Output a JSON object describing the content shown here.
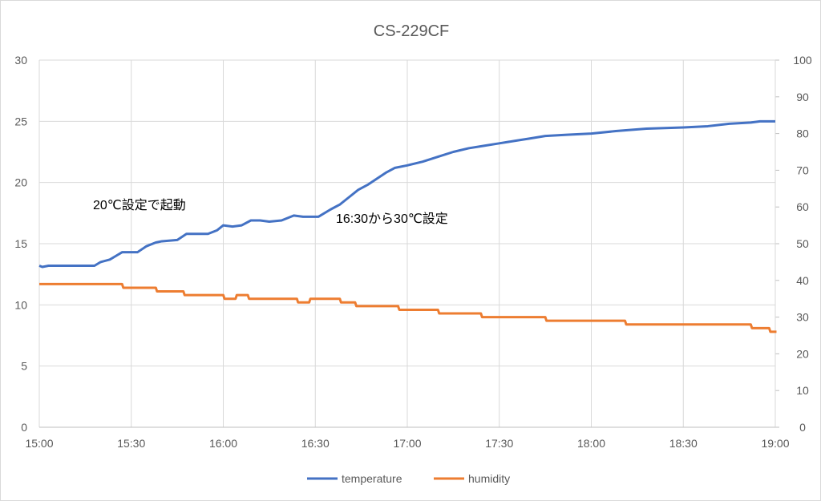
{
  "chart_data": {
    "type": "line",
    "title": "CS-229CF",
    "x_ticks": [
      "15:00",
      "15:30",
      "16:00",
      "16:30",
      "17:00",
      "17:30",
      "18:00",
      "18:30",
      "19:00"
    ],
    "x_range_minutes_from_15:00": [
      0,
      240
    ],
    "y_left": {
      "range": [
        0,
        30
      ],
      "ticks": [
        0,
        5,
        10,
        15,
        20,
        25,
        30
      ]
    },
    "y_right": {
      "range": [
        0,
        100
      ],
      "ticks": [
        0,
        10,
        20,
        30,
        40,
        50,
        60,
        70,
        80,
        90,
        100
      ]
    },
    "grid": true,
    "legend": {
      "placement": "bottom",
      "entries": [
        "temperature",
        "humidity"
      ]
    },
    "colors": {
      "temperature": "#4472C4",
      "humidity": "#ED7D31"
    },
    "annotations": [
      "20℃設定で起動",
      "16:30から30℃設定"
    ],
    "series": [
      {
        "name": "temperature",
        "axis": "left",
        "interpolation": "linear",
        "points": [
          [
            "15:00",
            13.2
          ],
          [
            "15:01",
            13.1
          ],
          [
            "15:03",
            13.2
          ],
          [
            "15:18",
            13.2
          ],
          [
            "15:20",
            13.5
          ],
          [
            "15:23",
            13.7
          ],
          [
            "15:25",
            14.0
          ],
          [
            "15:27",
            14.3
          ],
          [
            "15:32",
            14.3
          ],
          [
            "15:35",
            14.8
          ],
          [
            "15:38",
            15.1
          ],
          [
            "15:40",
            15.2
          ],
          [
            "15:45",
            15.3
          ],
          [
            "15:48",
            15.8
          ],
          [
            "15:55",
            15.8
          ],
          [
            "15:58",
            16.1
          ],
          [
            "16:00",
            16.5
          ],
          [
            "16:03",
            16.4
          ],
          [
            "16:06",
            16.5
          ],
          [
            "16:09",
            16.9
          ],
          [
            "16:12",
            16.9
          ],
          [
            "16:15",
            16.8
          ],
          [
            "16:19",
            16.9
          ],
          [
            "16:23",
            17.3
          ],
          [
            "16:26",
            17.2
          ],
          [
            "16:31",
            17.2
          ],
          [
            "16:35",
            17.8
          ],
          [
            "16:38",
            18.2
          ],
          [
            "16:41",
            18.8
          ],
          [
            "16:44",
            19.4
          ],
          [
            "16:47",
            19.8
          ],
          [
            "16:50",
            20.3
          ],
          [
            "16:53",
            20.8
          ],
          [
            "16:56",
            21.2
          ],
          [
            "17:00",
            21.4
          ],
          [
            "17:05",
            21.7
          ],
          [
            "17:10",
            22.1
          ],
          [
            "17:15",
            22.5
          ],
          [
            "17:20",
            22.8
          ],
          [
            "17:25",
            23.0
          ],
          [
            "17:30",
            23.2
          ],
          [
            "17:35",
            23.4
          ],
          [
            "17:40",
            23.6
          ],
          [
            "17:45",
            23.8
          ],
          [
            "17:52",
            23.9
          ],
          [
            "18:00",
            24.0
          ],
          [
            "18:08",
            24.2
          ],
          [
            "18:18",
            24.4
          ],
          [
            "18:30",
            24.5
          ],
          [
            "18:38",
            24.6
          ],
          [
            "18:45",
            24.8
          ],
          [
            "18:52",
            24.9
          ],
          [
            "18:55",
            25.0
          ],
          [
            "19:00",
            25.0
          ]
        ]
      },
      {
        "name": "humidity",
        "axis": "right",
        "interpolation": "step",
        "points": [
          [
            "15:00",
            39
          ],
          [
            "15:27",
            38
          ],
          [
            "15:38",
            37
          ],
          [
            "15:47",
            36
          ],
          [
            "16:00",
            35
          ],
          [
            "16:04",
            36
          ],
          [
            "16:08",
            35
          ],
          [
            "16:24",
            34
          ],
          [
            "16:28",
            35
          ],
          [
            "16:38",
            34
          ],
          [
            "16:43",
            33
          ],
          [
            "16:57",
            32
          ],
          [
            "17:10",
            31
          ],
          [
            "17:24",
            30
          ],
          [
            "17:45",
            29
          ],
          [
            "18:11",
            28
          ],
          [
            "18:52",
            27
          ],
          [
            "18:58",
            26
          ],
          [
            "19:00",
            26
          ]
        ]
      }
    ]
  }
}
